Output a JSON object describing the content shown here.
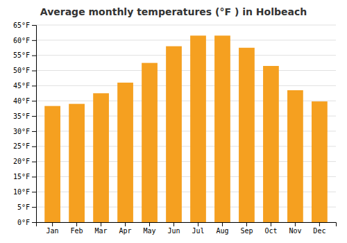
{
  "chart_data": {
    "type": "bar",
    "title": "Average monthly temperatures (°F ) in Holbeach",
    "categories": [
      "Jan",
      "Feb",
      "Mar",
      "Apr",
      "May",
      "Jun",
      "Jul",
      "Aug",
      "Sep",
      "Oct",
      "Nov",
      "Dec"
    ],
    "values": [
      38.3,
      39.0,
      42.5,
      46.0,
      52.5,
      58.0,
      61.5,
      61.5,
      57.5,
      51.5,
      43.5,
      39.8
    ],
    "color": "#F5A020",
    "ylim": [
      0,
      65
    ],
    "yticks": [
      {
        "value": 0,
        "label": "0°F"
      },
      {
        "value": 5,
        "label": "5°F"
      },
      {
        "value": 10,
        "label": "10°F"
      },
      {
        "value": 15,
        "label": "15°F"
      },
      {
        "value": 20,
        "label": "20°F"
      },
      {
        "value": 25,
        "label": "25°F"
      },
      {
        "value": 30,
        "label": "30°F"
      },
      {
        "value": 35,
        "label": "35°F"
      },
      {
        "value": 40,
        "label": "40°F"
      },
      {
        "value": 45,
        "label": "45°F"
      },
      {
        "value": 50,
        "label": "50°F"
      },
      {
        "value": 55,
        "label": "55°F"
      },
      {
        "value": 60,
        "label": "60°F"
      },
      {
        "value": 65,
        "label": "65°F"
      }
    ],
    "grid": true
  }
}
